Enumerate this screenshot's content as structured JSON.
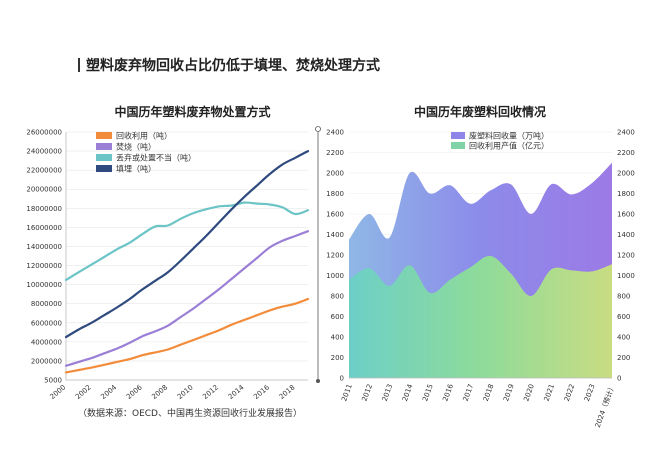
{
  "page_title": "塑料废弃物回收占比仍低于填埋、焚烧处理方式",
  "source_note": "（数据来源：OECD、中国再生资源回收行业发展报告）",
  "colors": {
    "recycle": "#F28C3A",
    "incinerate": "#9B7FD6",
    "mismanaged": "#6CC4C6",
    "landfill": "#2F4A7E"
  },
  "chart_data": [
    {
      "type": "line",
      "title": "中国历年塑料废弃物处置方式",
      "xlabel": "",
      "ylabel": "",
      "x": [
        2000,
        2001,
        2002,
        2003,
        2004,
        2005,
        2006,
        2007,
        2008,
        2009,
        2010,
        2011,
        2012,
        2013,
        2014,
        2015,
        2016,
        2017,
        2018,
        2019
      ],
      "x_ticks": [
        "2000",
        "2002",
        "2004",
        "2006",
        "2008",
        "2010",
        "2012",
        "2014",
        "2016",
        "2018"
      ],
      "ylim": [
        5000,
        26000000
      ],
      "y_ticks": [
        "5000",
        "2000000",
        "4000000",
        "6000000",
        "8000000",
        "10000000",
        "12000000",
        "14000000",
        "16000000",
        "18000000",
        "20000000",
        "22000000",
        "24000000",
        "26000000"
      ],
      "legend_position": "top-left",
      "series": [
        {
          "name": "回收利用（吨）",
          "color": "#F28C3A",
          "values": [
            800000,
            1050000,
            1300000,
            1600000,
            1900000,
            2200000,
            2600000,
            2900000,
            3200000,
            3700000,
            4200000,
            4700000,
            5200000,
            5800000,
            6300000,
            6800000,
            7300000,
            7700000,
            8000000,
            8500000
          ]
        },
        {
          "name": "焚烧（吨）",
          "color": "#9B7FD6",
          "values": [
            1500000,
            1900000,
            2300000,
            2800000,
            3300000,
            3900000,
            4600000,
            5100000,
            5700000,
            6600000,
            7500000,
            8500000,
            9500000,
            10600000,
            11700000,
            12800000,
            13900000,
            14600000,
            15100000,
            15600000
          ]
        },
        {
          "name": "丢弃或处置不当（吨）",
          "color": "#6CC4C6",
          "values": [
            10500000,
            11300000,
            12100000,
            12900000,
            13700000,
            14400000,
            15300000,
            16100000,
            16200000,
            16900000,
            17500000,
            17900000,
            18200000,
            18300000,
            18600000,
            18500000,
            18400000,
            18100000,
            17400000,
            17800000
          ]
        },
        {
          "name": "填埋（吨）",
          "color": "#2F4A7E",
          "values": [
            4500000,
            5300000,
            6000000,
            6800000,
            7600000,
            8500000,
            9500000,
            10400000,
            11300000,
            12500000,
            13800000,
            15100000,
            16500000,
            17900000,
            19200000,
            20400000,
            21600000,
            22600000,
            23300000,
            24000000
          ]
        }
      ]
    },
    {
      "type": "area",
      "title": "中国历年废塑料回收情况",
      "x": [
        "2011",
        "2012",
        "2013",
        "2014",
        "2015",
        "2016",
        "2017",
        "2018",
        "2019",
        "2020",
        "2021",
        "2022",
        "2023",
        "2024（预计）"
      ],
      "ylim_left": [
        0,
        2400
      ],
      "ylim_right": [
        0,
        2400
      ],
      "y_ticks_left": [
        "0",
        "200",
        "400",
        "600",
        "800",
        "1000",
        "1200",
        "1400",
        "1600",
        "1800",
        "2000",
        "2200",
        "2400"
      ],
      "y_ticks_right": [
        "0",
        "200",
        "400",
        "600",
        "800",
        "1000",
        "1200",
        "1400",
        "1600",
        "1800",
        "2000",
        "2200",
        "2400"
      ],
      "legend_position": "top-center",
      "series": [
        {
          "name": "废塑料回收量（万吨）",
          "color": "#8F84E8",
          "values": [
            1350,
            1600,
            1370,
            2000,
            1800,
            1880,
            1700,
            1830,
            1890,
            1600,
            1890,
            1790,
            1900,
            2100
          ]
        },
        {
          "name": "回收利用产值（亿元）",
          "color": "#7FD3A6",
          "values": [
            960,
            1070,
            900,
            1100,
            830,
            960,
            1080,
            1190,
            1020,
            800,
            1060,
            1050,
            1040,
            1110
          ]
        }
      ]
    }
  ]
}
